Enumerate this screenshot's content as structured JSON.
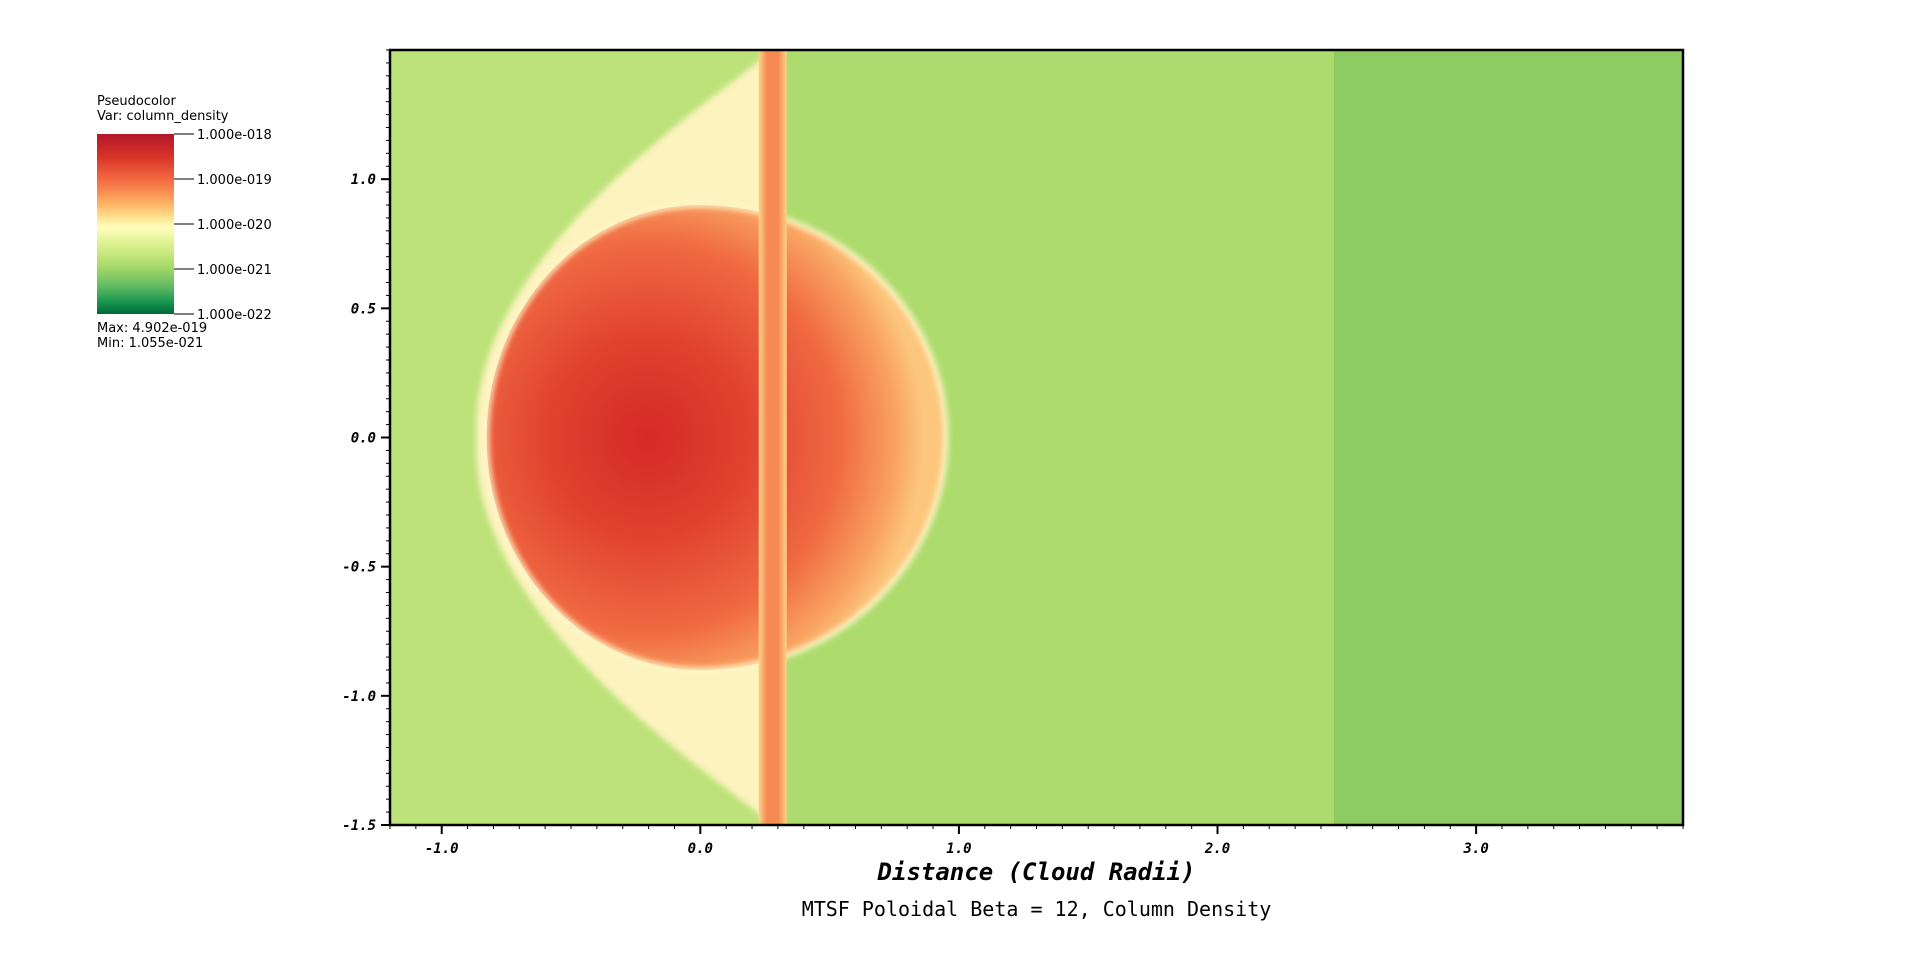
{
  "legend": {
    "plot_type": "Pseudocolor",
    "variable": "Var: column_density",
    "max": "Max:  4.902e-019",
    "min": "Min:  1.055e-021",
    "tick_labels": [
      "1.000e-018",
      "1.000e-019",
      "1.000e-020",
      "1.000e-021",
      "1.000e-022"
    ],
    "colors": [
      "#b2182b",
      "#d73027",
      "#f46d43",
      "#fdae61",
      "#fee08b",
      "#ffffbf",
      "#d9ef8b",
      "#a6d96a",
      "#66bd63",
      "#1a9850",
      "#006837"
    ]
  },
  "chart_data": {
    "type": "heatmap",
    "title": "MTSF Poloidal Beta = 12, Column Density",
    "xlabel": "Distance (Cloud Radii)",
    "ylabel": "",
    "xlim": [
      -1.2,
      3.8
    ],
    "ylim": [
      -1.5,
      1.5
    ],
    "x_ticks": [
      -1.0,
      0.0,
      1.0,
      2.0,
      3.0
    ],
    "x_tick_labels": [
      "-1.0",
      "0.0",
      "1.0",
      "2.0",
      "3.0"
    ],
    "y_ticks": [
      1.0,
      0.5,
      0.0,
      -0.5,
      -1.0,
      -1.5
    ],
    "y_tick_labels": [
      "1.0",
      "0.5",
      "0.0",
      "-0.5",
      "-1.0",
      "-1.5"
    ],
    "features": {
      "cloud_center": [
        0.0,
        0.0
      ],
      "cloud_radius": 0.95,
      "filament_x": 0.28,
      "shock_boundary_x": 2.45
    },
    "colors": {
      "background": "#bde27a",
      "post_region": "#aedb6d",
      "far_region": "#8ccc63",
      "core": "#d73027",
      "envelope": "#f58c55",
      "sheath": "#fdf6c2"
    }
  }
}
